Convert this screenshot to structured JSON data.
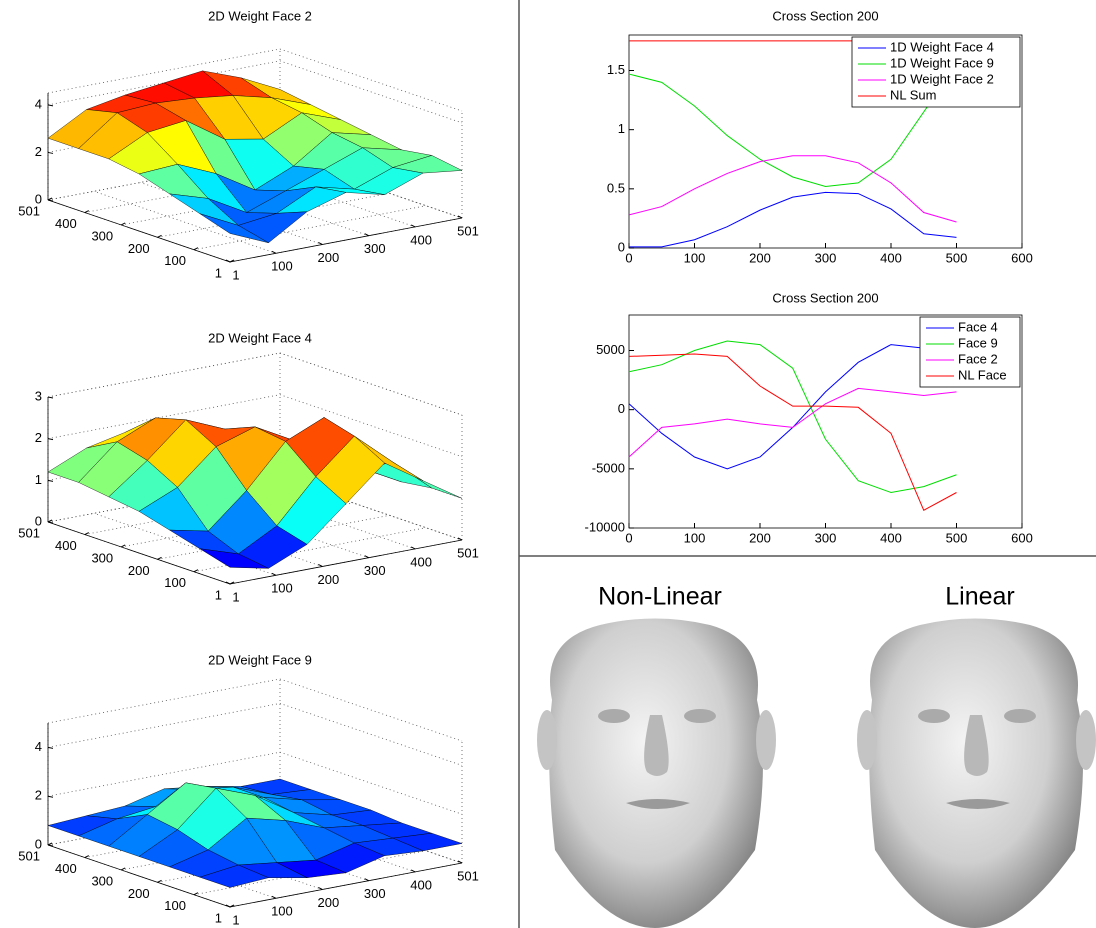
{
  "chart_data": [
    {
      "type": "surface",
      "title": "2D Weight Face 2",
      "x": [
        1,
        84,
        167,
        251,
        334,
        417,
        501
      ],
      "y": [
        1,
        84,
        167,
        251,
        334,
        417,
        501
      ],
      "z": [
        [
          1.2,
          0.5,
          1.5,
          2.0,
          1.6,
          2.2,
          2.0
        ],
        [
          1.6,
          0.8,
          1.0,
          1.8,
          1.4,
          2.0,
          2.2
        ],
        [
          2.0,
          1.5,
          0.6,
          1.2,
          1.8,
          2.4,
          2.0
        ],
        [
          2.4,
          2.5,
          1.8,
          0.8,
          1.5,
          2.6,
          2.2
        ],
        [
          2.6,
          3.4,
          3.6,
          2.5,
          2.2,
          3.0,
          2.4
        ],
        [
          2.6,
          3.8,
          3.9,
          3.8,
          3.6,
          3.2,
          2.6
        ],
        [
          2.6,
          3.5,
          3.8,
          4.0,
          4.2,
          3.6,
          2.8
        ]
      ],
      "xlim": [
        1,
        501
      ],
      "ylim": [
        1,
        501
      ],
      "zlim": [
        0,
        4.5
      ],
      "xticks": [
        1,
        100,
        200,
        300,
        400,
        501
      ],
      "yticks": [
        1,
        100,
        200,
        300,
        400,
        501
      ],
      "zticks": [
        0,
        2,
        4
      ],
      "grid": true
    },
    {
      "type": "surface",
      "title": "2D Weight Face 4",
      "x": [
        1,
        84,
        167,
        251,
        334,
        417,
        501
      ],
      "y": [
        1,
        84,
        167,
        251,
        334,
        417,
        501
      ],
      "z": [
        [
          0.4,
          0.2,
          0.6,
          1.4,
          2.2,
          1.6,
          1.0
        ],
        [
          0.6,
          0.3,
          0.8,
          1.8,
          2.6,
          1.8,
          1.0
        ],
        [
          0.8,
          0.6,
          1.4,
          2.4,
          2.8,
          1.4,
          0.9
        ],
        [
          1.0,
          1.4,
          2.2,
          2.5,
          2.0,
          1.0,
          0.9
        ],
        [
          1.1,
          1.8,
          2.6,
          2.2,
          1.4,
          0.9,
          1.0
        ],
        [
          1.2,
          2.0,
          2.4,
          1.8,
          1.2,
          1.0,
          1.0
        ],
        [
          1.2,
          1.6,
          1.8,
          1.4,
          1.2,
          1.1,
          1.0
        ]
      ],
      "xlim": [
        1,
        501
      ],
      "ylim": [
        1,
        501
      ],
      "zlim": [
        0,
        3
      ],
      "xticks": [
        1,
        100,
        200,
        300,
        400,
        501
      ],
      "yticks": [
        1,
        100,
        200,
        300,
        400,
        501
      ],
      "zticks": [
        0,
        1,
        2,
        3
      ],
      "grid": true
    },
    {
      "type": "surface",
      "title": "2D Weight Face 9",
      "x": [
        1,
        84,
        167,
        251,
        334,
        417,
        501
      ],
      "y": [
        1,
        84,
        167,
        251,
        334,
        417,
        501
      ],
      "z": [
        [
          0.8,
          0.9,
          0.6,
          0.5,
          0.9,
          0.8,
          0.8
        ],
        [
          0.8,
          1.0,
          0.8,
          0.6,
          1.0,
          0.9,
          0.8
        ],
        [
          0.8,
          1.2,
          2.2,
          1.8,
          1.2,
          1.0,
          0.8
        ],
        [
          0.8,
          1.6,
          3.0,
          2.4,
          1.4,
          1.0,
          0.9
        ],
        [
          0.8,
          1.8,
          2.8,
          2.0,
          1.6,
          1.2,
          0.9
        ],
        [
          0.8,
          1.2,
          1.4,
          1.8,
          1.6,
          1.0,
          0.9
        ],
        [
          0.8,
          0.9,
          1.0,
          1.4,
          1.2,
          0.9,
          0.9
        ]
      ],
      "xlim": [
        1,
        501
      ],
      "ylim": [
        1,
        501
      ],
      "zlim": [
        0,
        5
      ],
      "xticks": [
        1,
        100,
        200,
        300,
        400,
        501
      ],
      "yticks": [
        1,
        100,
        200,
        300,
        400,
        501
      ],
      "zticks": [
        0,
        2,
        4
      ],
      "grid": true
    },
    {
      "type": "line",
      "title": "Cross Section 200",
      "x": [
        0,
        50,
        100,
        150,
        200,
        250,
        300,
        350,
        400,
        450,
        500
      ],
      "series": [
        {
          "name": "1D Weight Face 4",
          "color": "#0000ff",
          "values": [
            0.01,
            0.01,
            0.07,
            0.18,
            0.32,
            0.43,
            0.47,
            0.46,
            0.33,
            0.12,
            0.09
          ]
        },
        {
          "name": "1D Weight Face 9",
          "color": "#00dd00",
          "values": [
            1.47,
            1.4,
            1.2,
            0.95,
            0.75,
            0.6,
            0.52,
            0.55,
            0.75,
            1.15,
            1.55
          ]
        },
        {
          "name": "1D Weight Face 2",
          "color": "#ff00ff",
          "values": [
            0.28,
            0.35,
            0.5,
            0.63,
            0.73,
            0.78,
            0.78,
            0.72,
            0.55,
            0.3,
            0.22
          ]
        },
        {
          "name": "NL Sum",
          "color": "#ff0000",
          "values": [
            1.75,
            1.75,
            1.75,
            1.75,
            1.75,
            1.75,
            1.75,
            1.75,
            1.75,
            1.75,
            1.75
          ]
        }
      ],
      "xlim": [
        0,
        600
      ],
      "ylim": [
        0,
        1.8
      ],
      "xticks": [
        0,
        100,
        200,
        300,
        400,
        500,
        600
      ],
      "yticks": [
        0,
        0.5,
        1,
        1.5
      ],
      "legend": "top-right"
    },
    {
      "type": "line",
      "title": "Cross Section 200",
      "x": [
        0,
        50,
        100,
        150,
        200,
        250,
        300,
        350,
        400,
        450,
        500
      ],
      "series": [
        {
          "name": "Face 4",
          "color": "#0000ff",
          "values": [
            500,
            -2000,
            -4000,
            -5000,
            -4000,
            -1500,
            1500,
            4000,
            5500,
            5200,
            5500
          ]
        },
        {
          "name": "Face 9",
          "color": "#00dd00",
          "values": [
            3200,
            3800,
            5000,
            5800,
            5500,
            3500,
            -2500,
            -6000,
            -7000,
            -6500,
            -5500
          ]
        },
        {
          "name": "Face 2",
          "color": "#ff00ff",
          "values": [
            -4000,
            -1500,
            -1200,
            -800,
            -1200,
            -1500,
            500,
            1800,
            1500,
            1200,
            1500
          ]
        },
        {
          "name": "NL Face",
          "color": "#ff0000",
          "values": [
            4500,
            4600,
            4700,
            4500,
            2000,
            300,
            300,
            200,
            -2000,
            -8500,
            -7000
          ]
        }
      ],
      "xlim": [
        0,
        600
      ],
      "ylim": [
        -10000,
        8000
      ],
      "xticks": [
        0,
        100,
        200,
        300,
        400,
        500,
        600
      ],
      "yticks": [
        -10000,
        -5000,
        0,
        5000
      ],
      "legend": "top-right"
    }
  ],
  "faces": {
    "labels": [
      "Non-Linear",
      "Linear"
    ]
  }
}
